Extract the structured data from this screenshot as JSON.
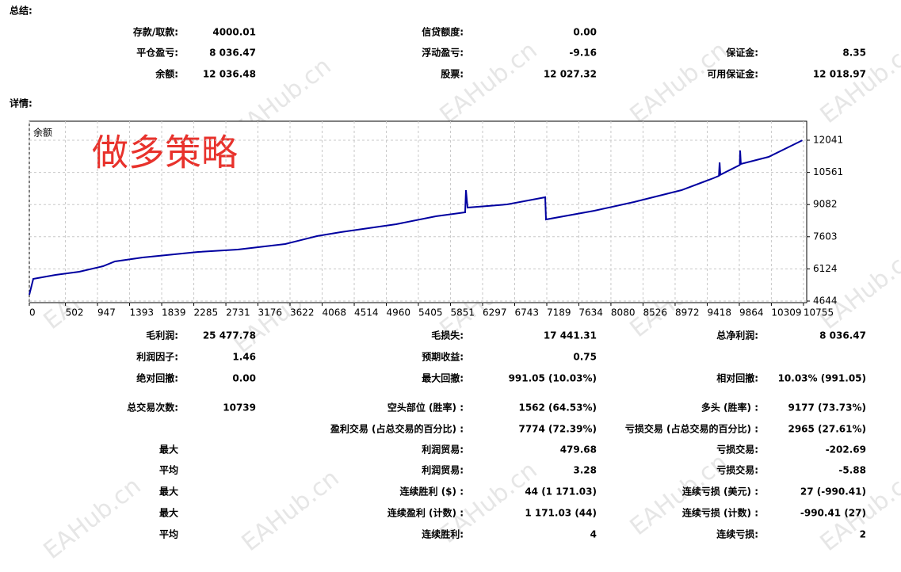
{
  "watermark": "EAHub.cn",
  "summary": {
    "title": "总结:",
    "rows": [
      [
        {
          "label": "存款/取款:",
          "value": "4000.01"
        },
        {
          "label": "信贷额度:",
          "value": "0.00"
        },
        null
      ],
      [
        {
          "label": "平仓盈亏:",
          "value": "8 036.47"
        },
        {
          "label": "浮动盈亏:",
          "value": "-9.16"
        },
        {
          "label": "保证金:",
          "value": "8.35"
        }
      ],
      [
        {
          "label": "余额:",
          "value": "12 036.48"
        },
        {
          "label": "股票:",
          "value": "12 027.32"
        },
        {
          "label": "可用保证金:",
          "value": "12 018.97"
        }
      ]
    ]
  },
  "details": {
    "title": "详情:",
    "rows": [
      [
        {
          "label": "毛利润:",
          "value": "25 477.78"
        },
        {
          "label": "毛损失:",
          "value": "17 441.31"
        },
        {
          "label": "总净利润:",
          "value": "8 036.47"
        }
      ],
      [
        {
          "label": "利润因子:",
          "value": "1.46"
        },
        {
          "label": "预期收益:",
          "value": "0.75"
        },
        null
      ],
      [
        {
          "label": "绝对回撤:",
          "value": "0.00"
        },
        {
          "label": "最大回撤:",
          "value": "991.05 (10.03%)"
        },
        {
          "label": "相对回撤:",
          "value": "10.03% (991.05)"
        }
      ],
      [
        {
          "label": "总交易次数:",
          "value": "10739"
        },
        {
          "label": "空头部位 (胜率) :",
          "value": "1562 (64.53%)"
        },
        {
          "label": "多头 (胜率) :",
          "value": "9177 (73.73%)"
        }
      ],
      [
        null,
        {
          "label": "盈利交易 (占总交易的百分比) :",
          "value": "7774 (72.39%)"
        },
        {
          "label": "亏损交易 (占总交易的百分比) :",
          "value": "2965 (27.61%)"
        }
      ],
      [
        {
          "label": "最大"
        },
        {
          "label": "利润贸易:",
          "value": "479.68"
        },
        {
          "label": "亏损交易:",
          "value": "-202.69"
        }
      ],
      [
        {
          "label": "平均"
        },
        {
          "label": "利润贸易:",
          "value": "3.28"
        },
        {
          "label": "亏损交易:",
          "value": "-5.88"
        }
      ],
      [
        {
          "label": "最大"
        },
        {
          "label": "连续胜利 ($) :",
          "value": "44 (1 171.03)"
        },
        {
          "label": "连续亏损 (美元) :",
          "value": "27 (-990.41)"
        }
      ],
      [
        {
          "label": "最大"
        },
        {
          "label": "连续盈利 (计数) :",
          "value": "1 171.03 (44)"
        },
        {
          "label": "连续亏损 (计数) :",
          "value": "-990.41 (27)"
        }
      ],
      [
        {
          "label": "平均"
        },
        {
          "label": "连续胜利:",
          "value": "4"
        },
        {
          "label": "连续亏损:",
          "value": "2"
        }
      ]
    ]
  },
  "chart_data": {
    "type": "line",
    "title": "余额",
    "annotation": "做多策略",
    "x": [
      0,
      55,
      363,
      694,
      1024,
      1189,
      1574,
      2345,
      2895,
      3556,
      3996,
      4327,
      5097,
      5648,
      6055,
      6066,
      6088,
      6639,
      7167,
      7178,
      7850,
      8400,
      9061,
      9501,
      9580,
      9590,
      9600,
      9870,
      9875,
      9885,
      10272,
      10739
    ],
    "series": [
      {
        "color": "#0000a0",
        "values": [
          4935,
          5664,
          5846,
          5992,
          6247,
          6466,
          6648,
          6903,
          7012,
          7267,
          7632,
          7814,
          8178,
          8543,
          8725,
          9745,
          8944,
          9089,
          9417,
          8397,
          8798,
          9199,
          9745,
          10292,
          10400,
          11020,
          10450,
          10900,
          11570,
          10950,
          11276,
          12036.48
        ]
      }
    ],
    "xlim": [
      0,
      10800
    ],
    "ylim": [
      4571,
      12916
    ],
    "xticks": [
      0,
      502,
      947,
      1393,
      1839,
      2285,
      2731,
      3176,
      3622,
      4068,
      4514,
      4960,
      5405,
      5851,
      6297,
      6743,
      7189,
      7634,
      8080,
      8526,
      8972,
      9418,
      9864,
      10309,
      10755
    ],
    "yticks": [
      12041,
      10561,
      9082,
      7603,
      6124,
      4644
    ],
    "grid": true
  }
}
